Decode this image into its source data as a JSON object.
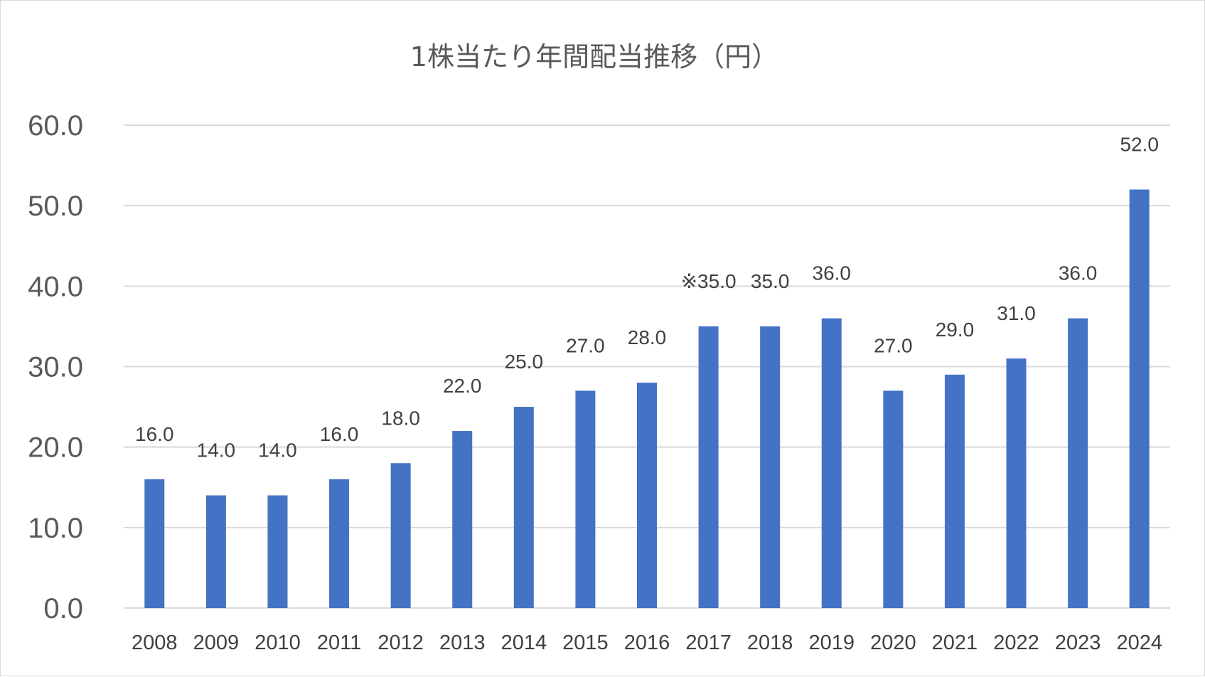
{
  "chart_data": {
    "type": "bar",
    "title": "1株当たり年間配当推移（円）",
    "categories": [
      "2008",
      "2009",
      "2010",
      "2011",
      "2012",
      "2013",
      "2014",
      "2015",
      "2016",
      "2017",
      "2018",
      "2019",
      "2020",
      "2021",
      "2022",
      "2023",
      "2024"
    ],
    "values": [
      16.0,
      14.0,
      14.0,
      16.0,
      18.0,
      22.0,
      25.0,
      27.0,
      28.0,
      35.0,
      35.0,
      36.0,
      27.0,
      29.0,
      31.0,
      36.0,
      52.0
    ],
    "data_labels": [
      "16.0",
      "14.0",
      "14.0",
      "16.0",
      "18.0",
      "22.0",
      "25.0",
      "27.0",
      "28.0",
      "※35.0",
      "35.0",
      "36.0",
      "27.0",
      "29.0",
      "31.0",
      "36.0",
      "52.0"
    ],
    "yticks": [
      "0.0",
      "10.0",
      "20.0",
      "30.0",
      "40.0",
      "50.0",
      "60.0"
    ],
    "ylim": [
      0,
      60
    ],
    "xlabel": "",
    "ylabel": "",
    "grid": true,
    "legend": "none",
    "bar_color": "#4472c4"
  }
}
